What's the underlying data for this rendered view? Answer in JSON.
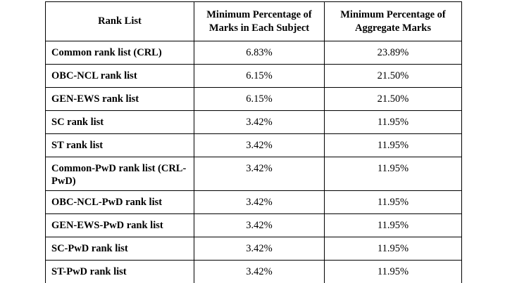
{
  "table": {
    "headers": {
      "rank_list": "Rank List",
      "subject": "Minimum Percentage of Marks in Each Subject",
      "aggregate": "Minimum Percentage of Aggregate Marks"
    },
    "rows": [
      {
        "rank_list": "Common rank list (CRL)",
        "subject_pct": "6.83%",
        "aggregate_pct": "23.89%"
      },
      {
        "rank_list": "OBC-NCL rank list",
        "subject_pct": "6.15%",
        "aggregate_pct": "21.50%"
      },
      {
        "rank_list": "GEN-EWS rank list",
        "subject_pct": "6.15%",
        "aggregate_pct": "21.50%"
      },
      {
        "rank_list": "SC rank list",
        "subject_pct": "3.42%",
        "aggregate_pct": "11.95%"
      },
      {
        "rank_list": "ST rank list",
        "subject_pct": "3.42%",
        "aggregate_pct": "11.95%"
      },
      {
        "rank_list": "Common-PwD rank list (CRL-PwD)",
        "subject_pct": "3.42%",
        "aggregate_pct": "11.95%"
      },
      {
        "rank_list": "OBC-NCL-PwD rank list",
        "subject_pct": "3.42%",
        "aggregate_pct": "11.95%"
      },
      {
        "rank_list": "GEN-EWS-PwD rank list",
        "subject_pct": "3.42%",
        "aggregate_pct": "11.95%"
      },
      {
        "rank_list": "SC-PwD rank list",
        "subject_pct": "3.42%",
        "aggregate_pct": "11.95%"
      },
      {
        "rank_list": "ST-PwD rank list",
        "subject_pct": "3.42%",
        "aggregate_pct": "11.95%"
      }
    ]
  }
}
